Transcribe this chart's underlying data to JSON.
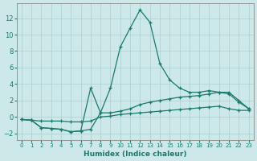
{
  "xlabel": "Humidex (Indice chaleur)",
  "bg_color": "#cce8e8",
  "grid_color": "#aacfcf",
  "line_color": "#1a7a6e",
  "spine_color": "#888888",
  "xlim": [
    -0.5,
    23.5
  ],
  "ylim": [
    -2.8,
    13.8
  ],
  "xticks": [
    0,
    1,
    2,
    3,
    4,
    5,
    6,
    7,
    8,
    9,
    10,
    11,
    12,
    13,
    14,
    15,
    16,
    17,
    18,
    19,
    20,
    21,
    22,
    23
  ],
  "yticks": [
    -2,
    0,
    2,
    4,
    6,
    8,
    10,
    12
  ],
  "series": [
    {
      "x": [
        0,
        1,
        2,
        3,
        4,
        5,
        6,
        7,
        8,
        9,
        10,
        11,
        12,
        13,
        14,
        15,
        16,
        17,
        18,
        19,
        20,
        21,
        22,
        23
      ],
      "y": [
        -0.3,
        -0.4,
        -1.3,
        -1.4,
        -1.5,
        -1.8,
        -1.7,
        -1.5,
        0.5,
        3.5,
        8.5,
        10.8,
        13.0,
        11.5,
        6.5,
        4.5,
        3.5,
        3.0,
        3.0,
        3.2,
        3.0,
        3.0,
        2.0,
        1.0
      ]
    },
    {
      "x": [
        0,
        1,
        2,
        3,
        4,
        5,
        6,
        7,
        8,
        9,
        10,
        11,
        12,
        13,
        14,
        15,
        16,
        17,
        18,
        19,
        20,
        21,
        22,
        23
      ],
      "y": [
        -0.3,
        -0.4,
        -1.3,
        -1.4,
        -1.5,
        -1.8,
        -1.7,
        3.5,
        0.5,
        0.5,
        0.7,
        1.0,
        1.5,
        1.8,
        2.0,
        2.2,
        2.4,
        2.5,
        2.6,
        2.8,
        3.0,
        2.8,
        1.8,
        1.0
      ]
    },
    {
      "x": [
        0,
        1,
        2,
        3,
        4,
        5,
        6,
        7,
        8,
        9,
        10,
        11,
        12,
        13,
        14,
        15,
        16,
        17,
        18,
        19,
        20,
        21,
        22,
        23
      ],
      "y": [
        -0.3,
        -0.4,
        -0.5,
        -0.5,
        -0.5,
        -0.6,
        -0.6,
        -0.5,
        0.0,
        0.1,
        0.3,
        0.4,
        0.5,
        0.6,
        0.7,
        0.8,
        0.9,
        1.0,
        1.1,
        1.2,
        1.3,
        1.0,
        0.8,
        0.8
      ]
    }
  ]
}
